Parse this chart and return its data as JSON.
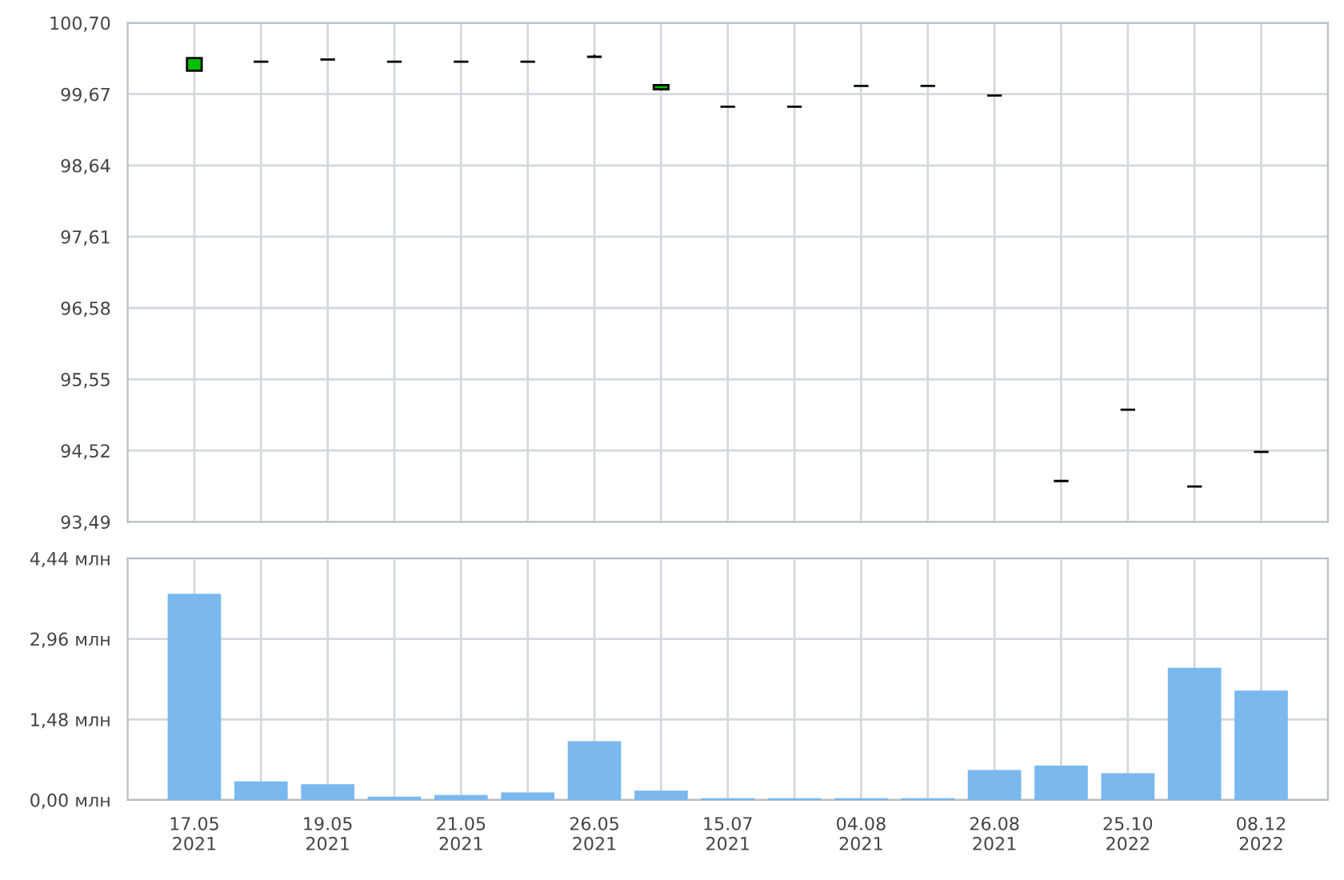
{
  "chart_data": [
    {
      "type": "candlestick",
      "categories": [
        null,
        null,
        null,
        null,
        null,
        null,
        null,
        null,
        null,
        null,
        null,
        null,
        null,
        null,
        null,
        null,
        null
      ],
      "ohlc": [
        [
          100.01,
          100.19,
          100.01,
          100.19
        ],
        [
          100.14,
          100.14,
          100.14,
          100.14
        ],
        [
          100.17,
          100.17,
          100.17,
          100.17
        ],
        [
          100.14,
          100.14,
          100.14,
          100.14
        ],
        [
          100.14,
          100.14,
          100.14,
          100.14
        ],
        [
          100.14,
          100.14,
          100.14,
          100.14
        ],
        [
          100.21,
          100.24,
          100.21,
          100.21
        ],
        [
          99.74,
          99.8,
          99.74,
          99.8
        ],
        [
          99.49,
          99.49,
          99.49,
          99.49
        ],
        [
          99.49,
          99.49,
          99.49,
          99.49
        ],
        [
          99.79,
          99.79,
          99.79,
          99.79
        ],
        [
          99.79,
          99.79,
          99.79,
          99.79
        ],
        [
          99.65,
          99.65,
          99.65,
          99.65
        ],
        [
          94.08,
          94.08,
          94.08,
          94.08
        ],
        [
          95.11,
          95.11,
          95.11,
          95.11
        ],
        [
          94.0,
          94.0,
          94.0,
          94.0
        ],
        [
          94.5,
          94.5,
          94.5,
          94.5
        ]
      ],
      "colors": [
        "#00c000",
        "#000000",
        "#000000",
        "#000000",
        "#000000",
        "#000000",
        "#000000",
        "#00c000",
        "#000000",
        "#000000",
        "#000000",
        "#000000",
        "#000000",
        "#000000",
        "#000000",
        "#000000",
        "#000000"
      ],
      "ylim": [
        93.49,
        100.7
      ],
      "yticks": [
        {
          "value": 93.49,
          "label": "93,49"
        },
        {
          "value": 94.52,
          "label": "94,52"
        },
        {
          "value": 95.55,
          "label": "95,55"
        },
        {
          "value": 96.58,
          "label": "96,58"
        },
        {
          "value": 97.61,
          "label": "97,61"
        },
        {
          "value": 98.64,
          "label": "98,64"
        },
        {
          "value": 99.67,
          "label": "99,67"
        },
        {
          "value": 100.7,
          "label": "100,70"
        }
      ],
      "grid": true,
      "tick_labels": "y"
    },
    {
      "type": "bar",
      "categories": [
        "17.05\n2021",
        null,
        "19.05\n2021",
        null,
        "21.05\n2021",
        null,
        "26.05\n2021",
        null,
        "15.07\n2021",
        null,
        "04.08\n2021",
        null,
        "26.08\n2021",
        null,
        "25.10\n2022",
        null,
        "08.12\n2022"
      ],
      "series": [
        {
          "color": "#7ab8ee",
          "values": [
            3.79,
            0.34,
            0.29,
            0.06,
            0.09,
            0.14,
            1.08,
            0.17,
            0.03,
            0.03,
            0.03,
            0.03,
            0.55,
            0.63,
            0.49,
            2.43,
            2.01
          ]
        }
      ],
      "ylim": [
        0,
        4.44
      ],
      "yticks": [
        {
          "value": 0,
          "label": "0,00 млн"
        },
        {
          "value": 1.48,
          "label": "1,48 млн"
        },
        {
          "value": 2.96,
          "label": "2,96 млн"
        },
        {
          "value": 4.44,
          "label": "4,44 млн"
        }
      ],
      "grid": true
    }
  ]
}
